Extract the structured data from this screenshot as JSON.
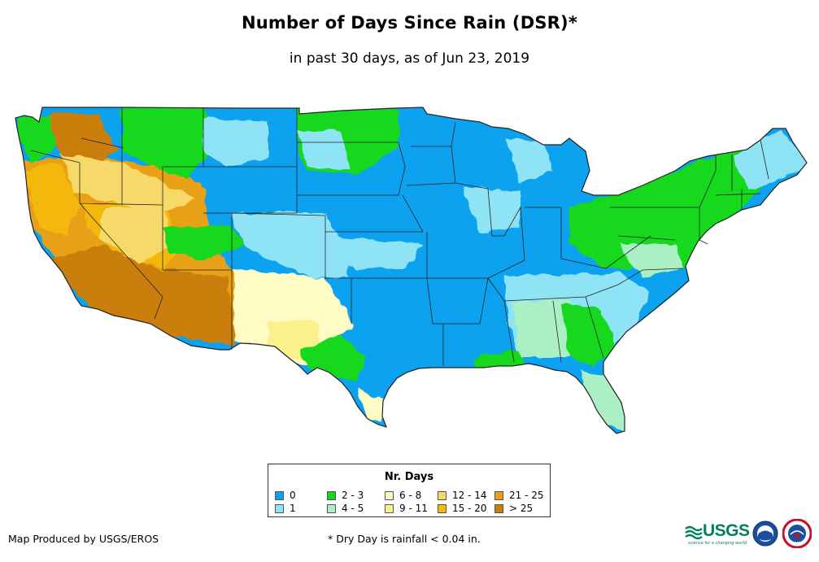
{
  "title": "Number of Days Since Rain (DSR)*",
  "subtitle": "in past 30 days, as of Jun 23, 2019",
  "legend": {
    "title": "Nr. Days",
    "items": [
      {
        "label": "0",
        "color": "#0aa2f0"
      },
      {
        "label": "1",
        "color": "#8ee3f5"
      },
      {
        "label": "2 - 3",
        "color": "#12d81c"
      },
      {
        "label": "4 - 5",
        "color": "#aaf0c4"
      },
      {
        "label": "6 - 8",
        "color": "#fffbc4"
      },
      {
        "label": "9 - 11",
        "color": "#fbf08c"
      },
      {
        "label": "12 - 14",
        "color": "#f6d968"
      },
      {
        "label": "15 - 20",
        "color": "#f4b80a"
      },
      {
        "label": "21 - 25",
        "color": "#e8a012"
      },
      {
        "label": "> 25",
        "color": "#cc7e08"
      }
    ]
  },
  "credit": "Map Produced by USGS/EROS",
  "footnote": "* Dry Day is rainfall < 0.04 in.",
  "logos": {
    "usgs": "USGS",
    "usgs_tagline": "science for a changing world",
    "noaa": "noaa",
    "nws": "NWS"
  }
}
